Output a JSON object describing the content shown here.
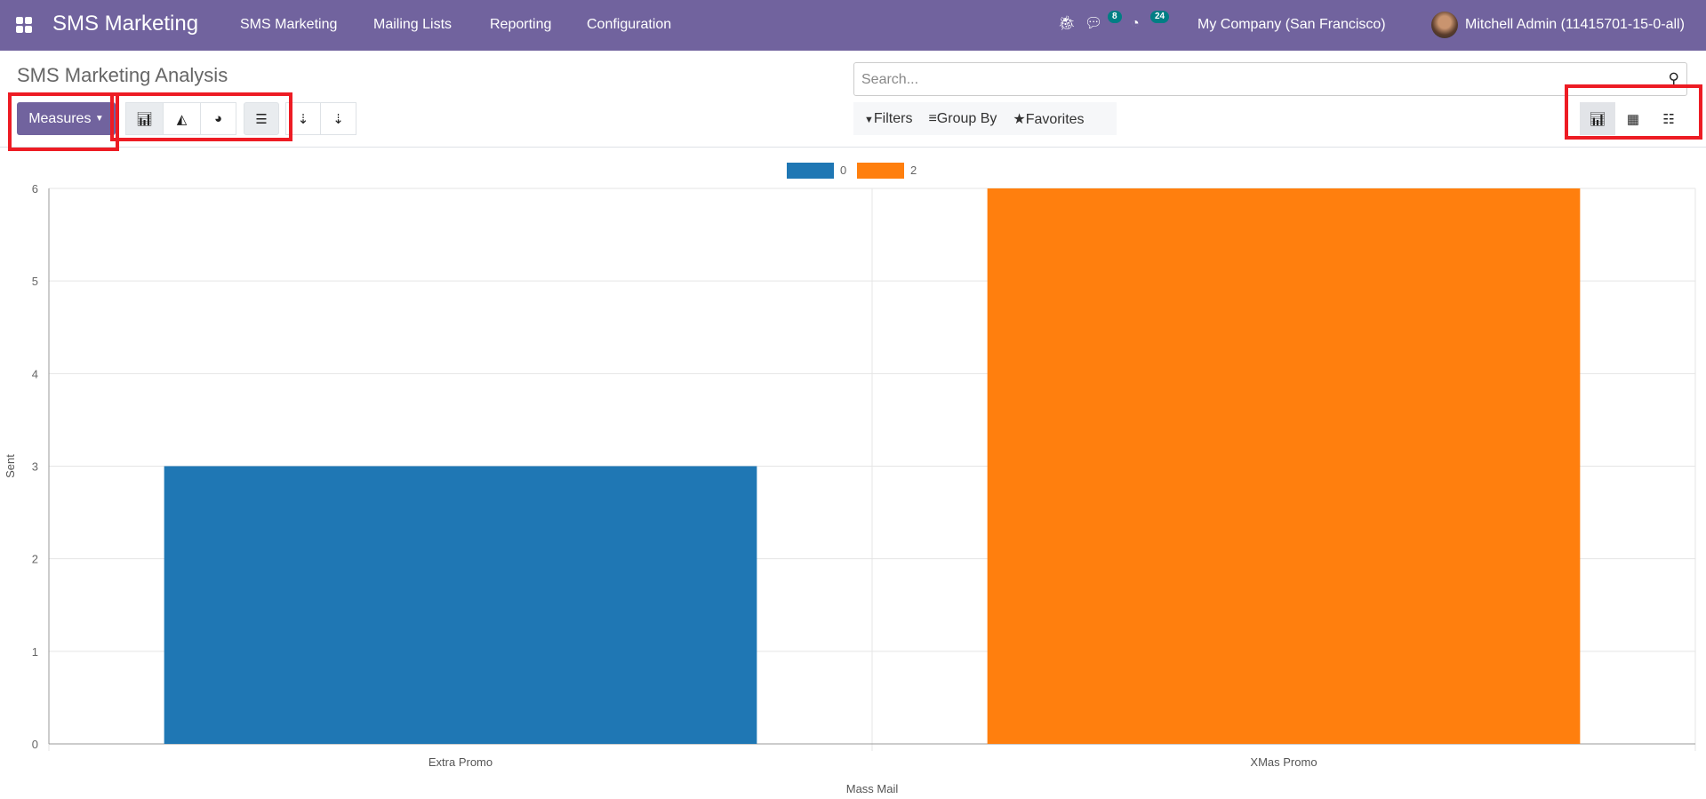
{
  "navbar": {
    "brand": "SMS Marketing",
    "menu": [
      "SMS Marketing",
      "Mailing Lists",
      "Reporting",
      "Configuration"
    ],
    "messages_count": "8",
    "activities_count": "24",
    "company": "My Company (San Francisco)",
    "user": "Mitchell Admin (11415701-15-0-all)",
    "color": "#71639e"
  },
  "page": {
    "title": "SMS Marketing Analysis"
  },
  "toolbar": {
    "measures_label": "Measures",
    "chart_types": [
      "bar-chart-icon",
      "line-chart-icon",
      "pie-chart-icon"
    ],
    "active_chart_type": "bar",
    "stacked": true
  },
  "search": {
    "placeholder": "Search...",
    "filters": "Filters",
    "group_by": "Group By",
    "favorites": "Favorites"
  },
  "views": {
    "items": [
      "graph",
      "pivot",
      "list"
    ],
    "active": "graph"
  },
  "chart_data": {
    "type": "bar",
    "categories": [
      "Extra Promo",
      "XMas Promo"
    ],
    "series": [
      {
        "name": "0",
        "color": "#1f77b4",
        "values": [
          3,
          0
        ]
      },
      {
        "name": "2",
        "color": "#ff7f0e",
        "values": [
          0,
          6
        ]
      }
    ],
    "xlabel": "Mass Mail",
    "ylabel": "Sent",
    "ylim": [
      0,
      6
    ],
    "yticks": [
      "0",
      "1",
      "2",
      "3",
      "4",
      "5",
      "6"
    ],
    "grid": true,
    "legend": "top",
    "stacked": true
  }
}
